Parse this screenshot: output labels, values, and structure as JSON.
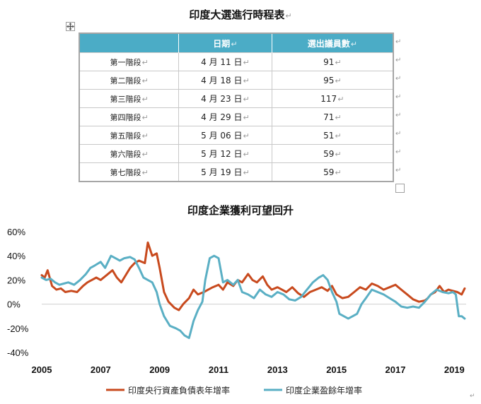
{
  "table_section": {
    "title": "印度大選進行時程表",
    "headers": [
      "",
      "日期",
      "選出議員數"
    ],
    "rows": [
      [
        "第一階段",
        "4 月 11 日",
        "91"
      ],
      [
        "第二階段",
        "4 月 18 日",
        "95"
      ],
      [
        "第三階段",
        "4 月 23 日",
        "117"
      ],
      [
        "第四階段",
        "4 月 29 日",
        "71"
      ],
      [
        "第五階段",
        "5 月 06 日",
        "51"
      ],
      [
        "第六階段",
        "5 月 12 日",
        "59"
      ],
      [
        "第七階段",
        "5 月 19 日",
        "59"
      ]
    ],
    "colors": {
      "header_bg": "#4bacc6",
      "header_text": "#ffffff",
      "border": "#a6a6a6"
    }
  },
  "marks": {
    "paragraph": "↵",
    "move_icon": "move-icon"
  },
  "chart_data": {
    "type": "line",
    "title": "印度企業獲利可望回升",
    "xlabel": "",
    "ylabel": "",
    "xlim": [
      2005,
      2019.4
    ],
    "ylim": [
      -40,
      60
    ],
    "x_ticks": [
      "2005",
      "2007",
      "2009",
      "2011",
      "2013",
      "2015",
      "2017",
      "2019"
    ],
    "y_ticks": [
      "60%",
      "40%",
      "20%",
      "0%",
      "-20%",
      "-40%"
    ],
    "grid": "zero-line only",
    "legend_position": "bottom",
    "series": [
      {
        "name": "印度央行資產負債表年增率",
        "color": "#c84a1e",
        "x": [
          2005.0,
          2005.1,
          2005.2,
          2005.35,
          2005.5,
          2005.65,
          2005.8,
          2006.0,
          2006.2,
          2006.4,
          2006.55,
          2006.7,
          2006.85,
          2007.0,
          2007.2,
          2007.4,
          2007.55,
          2007.7,
          2007.85,
          2008.0,
          2008.15,
          2008.3,
          2008.5,
          2008.6,
          2008.75,
          2008.9,
          2009.0,
          2009.15,
          2009.3,
          2009.5,
          2009.65,
          2009.8,
          2010.0,
          2010.15,
          2010.3,
          2010.5,
          2010.65,
          2010.8,
          2011.0,
          2011.15,
          2011.3,
          2011.5,
          2011.65,
          2011.8,
          2012.0,
          2012.15,
          2012.3,
          2012.5,
          2012.65,
          2012.8,
          2013.0,
          2013.15,
          2013.3,
          2013.5,
          2013.7,
          2013.9,
          2014.1,
          2014.3,
          2014.5,
          2014.7,
          2014.85,
          2015.0,
          2015.2,
          2015.4,
          2015.6,
          2015.8,
          2016.0,
          2016.2,
          2016.4,
          2016.6,
          2016.8,
          2017.0,
          2017.2,
          2017.4,
          2017.6,
          2017.8,
          2018.0,
          2018.1,
          2018.2,
          2018.35,
          2018.5,
          2018.65,
          2018.8,
          2018.95,
          2019.1,
          2019.25,
          2019.35
        ],
        "values": [
          24,
          22,
          28,
          15,
          12,
          13,
          10,
          11,
          10,
          15,
          18,
          20,
          22,
          20,
          24,
          28,
          22,
          18,
          24,
          30,
          34,
          36,
          34,
          51,
          40,
          42,
          30,
          10,
          2,
          -3,
          -5,
          0,
          5,
          12,
          8,
          10,
          12,
          14,
          16,
          12,
          18,
          15,
          20,
          18,
          25,
          20,
          18,
          23,
          16,
          12,
          14,
          12,
          10,
          14,
          9,
          6,
          10,
          12,
          14,
          11,
          15,
          8,
          5,
          6,
          10,
          14,
          12,
          17,
          15,
          12,
          14,
          16,
          12,
          8,
          4,
          2,
          3,
          5,
          8,
          10,
          15,
          10,
          12,
          11,
          10,
          8,
          13
        ]
      },
      {
        "name": "印度企業盈餘年增率",
        "color": "#5aafc4",
        "x": [
          2005.0,
          2005.15,
          2005.3,
          2005.45,
          2005.6,
          2005.75,
          2005.9,
          2006.1,
          2006.3,
          2006.5,
          2006.65,
          2006.8,
          2007.0,
          2007.15,
          2007.35,
          2007.5,
          2007.65,
          2007.8,
          2008.0,
          2008.15,
          2008.3,
          2008.45,
          2008.6,
          2008.75,
          2008.9,
          2009.0,
          2009.15,
          2009.35,
          2009.55,
          2009.7,
          2009.85,
          2010.0,
          2010.15,
          2010.3,
          2010.45,
          2010.55,
          2010.7,
          2010.85,
          2011.0,
          2011.15,
          2011.3,
          2011.5,
          2011.65,
          2011.8,
          2012.0,
          2012.2,
          2012.4,
          2012.6,
          2012.8,
          2013.0,
          2013.2,
          2013.4,
          2013.6,
          2013.8,
          2014.0,
          2014.2,
          2014.4,
          2014.55,
          2014.7,
          2014.85,
          2015.0,
          2015.1,
          2015.25,
          2015.4,
          2015.55,
          2015.7,
          2015.85,
          2016.0,
          2016.2,
          2016.4,
          2016.6,
          2016.8,
          2017.0,
          2017.2,
          2017.4,
          2017.6,
          2017.8,
          2018.0,
          2018.2,
          2018.4,
          2018.6,
          2018.8,
          2018.95,
          2019.05,
          2019.15,
          2019.25,
          2019.35
        ],
        "values": [
          22,
          20,
          21,
          18,
          16,
          17,
          18,
          16,
          20,
          25,
          30,
          32,
          35,
          30,
          40,
          38,
          36,
          38,
          39,
          37,
          30,
          22,
          20,
          18,
          10,
          0,
          -10,
          -18,
          -20,
          -22,
          -26,
          -28,
          -14,
          -5,
          2,
          20,
          38,
          40,
          38,
          18,
          20,
          16,
          20,
          10,
          8,
          5,
          12,
          8,
          6,
          10,
          8,
          4,
          3,
          6,
          12,
          18,
          22,
          24,
          20,
          10,
          2,
          -8,
          -10,
          -12,
          -10,
          -8,
          0,
          5,
          12,
          10,
          8,
          5,
          2,
          -2,
          -3,
          -2,
          -3,
          2,
          8,
          12,
          10,
          9,
          10,
          8,
          -10,
          -10,
          -12
        ]
      }
    ]
  }
}
